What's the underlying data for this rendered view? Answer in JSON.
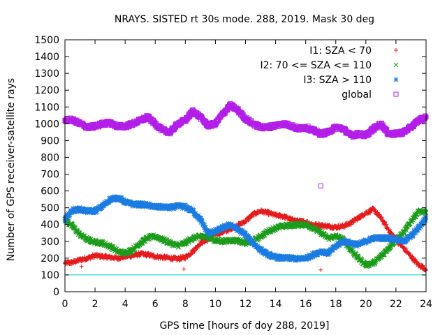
{
  "chart_data": {
    "type": "scatter",
    "title": "NRAYS. SISTED rt 30s mode. 288, 2019. Mask 30 deg",
    "xlabel": "GPS time [hours of doy 288, 2019]",
    "ylabel": "Number of GPS receiver-satellite rays",
    "xlim": [
      0,
      24
    ],
    "ylim": [
      0,
      1500
    ],
    "xticks": [
      "0",
      "2",
      "4",
      "6",
      "8",
      "10",
      "12",
      "14",
      "16",
      "18",
      "20",
      "22",
      "24"
    ],
    "yticks": [
      "0",
      "100",
      "200",
      "300",
      "400",
      "500",
      "600",
      "700",
      "800",
      "900",
      "1000",
      "1100",
      "1200",
      "1300",
      "1400",
      "1500"
    ],
    "legend_position": "top-right",
    "reference_line": {
      "y": 100,
      "color": "#00cccc"
    },
    "series": [
      {
        "name": "I1: SZA < 70",
        "marker": "+",
        "color": "#e41a1c",
        "x": [
          0,
          0.5,
          1,
          1.5,
          2,
          2.5,
          3,
          3.5,
          4,
          4.5,
          5,
          5.5,
          6,
          6.5,
          7,
          7.5,
          8,
          8.5,
          9,
          9.5,
          10,
          10.5,
          11,
          11.5,
          12,
          12.5,
          13,
          13.5,
          14,
          14.5,
          15,
          15.5,
          16,
          16.5,
          17,
          17.5,
          18,
          18.5,
          19,
          19.5,
          20,
          20.5,
          21,
          21.5,
          22,
          22.5,
          23,
          23.5,
          24
        ],
        "y": [
          170,
          175,
          190,
          200,
          215,
          210,
          205,
          200,
          210,
          215,
          225,
          220,
          210,
          205,
          200,
          195,
          205,
          240,
          290,
          310,
          345,
          355,
          375,
          395,
          420,
          460,
          480,
          470,
          455,
          450,
          430,
          420,
          415,
          400,
          395,
          390,
          385,
          390,
          410,
          440,
          470,
          490,
          440,
          370,
          310,
          260,
          210,
          160,
          135
        ]
      },
      {
        "name": "I2: 70 <= SZA <= 110",
        "marker": "x",
        "color": "#1a9b1a",
        "x": [
          0,
          0.5,
          1,
          1.5,
          2,
          2.5,
          3,
          3.5,
          4,
          4.5,
          5,
          5.5,
          6,
          6.5,
          7,
          7.5,
          8,
          8.5,
          9,
          9.5,
          10,
          10.5,
          11,
          11.5,
          12,
          12.5,
          13,
          13.5,
          14,
          14.5,
          15,
          15.5,
          16,
          16.5,
          17,
          17.5,
          18,
          18.5,
          19,
          19.5,
          20,
          20.5,
          21,
          21.5,
          22,
          22.5,
          23,
          23.5,
          24
        ],
        "y": [
          430,
          390,
          340,
          310,
          295,
          290,
          270,
          240,
          230,
          250,
          290,
          320,
          330,
          310,
          290,
          275,
          290,
          320,
          330,
          325,
          305,
          300,
          305,
          305,
          290,
          300,
          330,
          360,
          380,
          390,
          395,
          400,
          400,
          380,
          350,
          320,
          330,
          310,
          250,
          200,
          160,
          170,
          210,
          260,
          310,
          350,
          420,
          480,
          470
        ]
      },
      {
        "name": "I3: SZA > 110",
        "marker": "*",
        "color": "#1a7be0",
        "x": [
          0,
          0.5,
          1,
          1.5,
          2,
          2.5,
          3,
          3.5,
          4,
          4.5,
          5,
          5.5,
          6,
          6.5,
          7,
          7.5,
          8,
          8.5,
          9,
          9.5,
          10,
          10.5,
          11,
          11.5,
          12,
          12.5,
          13,
          13.5,
          14,
          14.5,
          15,
          15.5,
          16,
          16.5,
          17,
          17.5,
          18,
          18.5,
          19,
          19.5,
          20,
          20.5,
          21,
          21.5,
          22,
          22.5,
          23,
          23.5,
          24
        ],
        "y": [
          430,
          485,
          490,
          480,
          480,
          510,
          550,
          560,
          535,
          520,
          520,
          515,
          505,
          505,
          500,
          510,
          505,
          480,
          430,
          350,
          360,
          380,
          400,
          370,
          340,
          290,
          250,
          220,
          205,
          200,
          200,
          195,
          200,
          220,
          240,
          230,
          270,
          300,
          290,
          280,
          300,
          320,
          320,
          320,
          310,
          300,
          330,
          380,
          440
        ]
      },
      {
        "name": "global",
        "marker": "square",
        "color": "#b21ee8",
        "x": [
          0,
          0.5,
          1,
          1.5,
          2,
          2.5,
          3,
          3.5,
          4,
          4.5,
          5,
          5.5,
          6,
          6.5,
          7,
          7.5,
          8,
          8.5,
          9,
          9.5,
          10,
          10.5,
          11,
          11.5,
          12,
          12.5,
          13,
          13.5,
          14,
          14.5,
          15,
          15.5,
          16,
          16.5,
          17,
          17.5,
          18,
          18.5,
          19,
          19.5,
          20,
          20.5,
          21,
          21.5,
          22,
          22.5,
          23,
          23.5,
          24
        ],
        "y": [
          1020,
          1025,
          1000,
          980,
          985,
          1000,
          1005,
          985,
          985,
          1000,
          1020,
          1040,
          1000,
          960,
          950,
          1000,
          1020,
          1075,
          1040,
          990,
          1000,
          1060,
          1110,
          1080,
          1030,
          1000,
          980,
          980,
          990,
          1000,
          990,
          970,
          980,
          960,
          940,
          950,
          980,
          970,
          930,
          940,
          930,
          970,
          1000,
          940,
          940,
          950,
          980,
          1020,
          1040
        ]
      }
    ],
    "outliers": [
      {
        "series": "global",
        "x": 17,
        "y": 630
      },
      {
        "series": "I1: SZA < 70",
        "x": 17,
        "y": 130
      },
      {
        "series": "I1: SZA < 70",
        "x": 7.9,
        "y": 135
      },
      {
        "series": "I1: SZA < 70",
        "x": 1.1,
        "y": 150
      }
    ]
  }
}
